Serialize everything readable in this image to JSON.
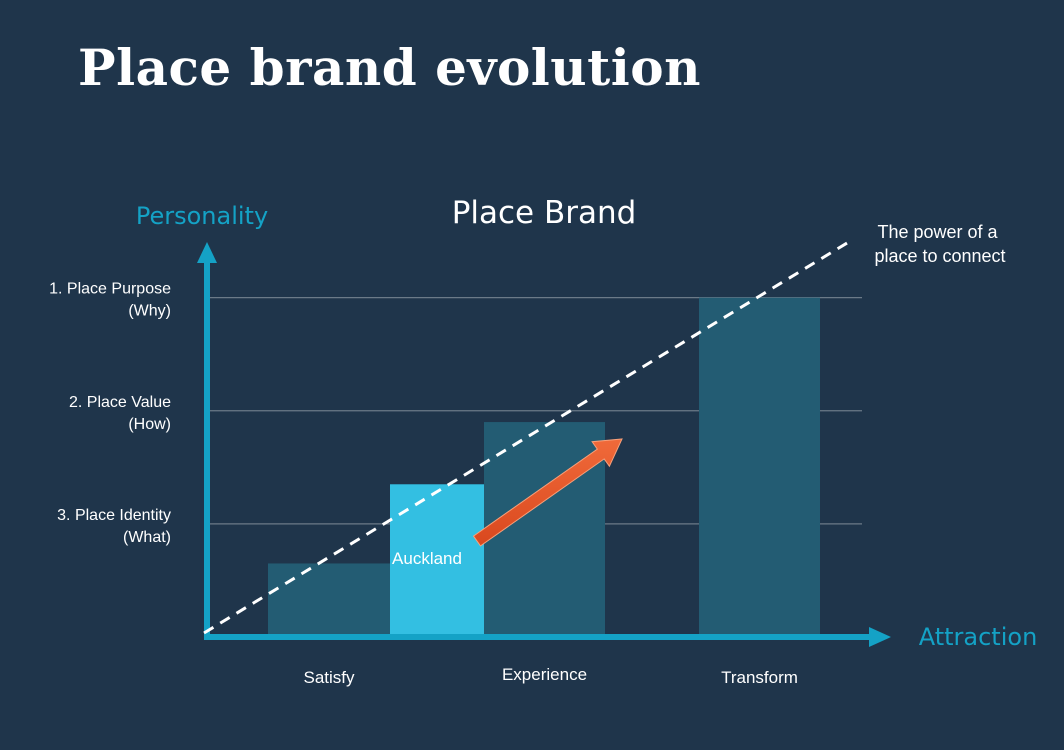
{
  "slide": {
    "title": "Place brand evolution"
  },
  "chart_data": {
    "type": "bar",
    "title": "Place Brand",
    "xlabel": "Attraction",
    "ylabel": "Personality",
    "y_levels": [
      {
        "line1": "3. Place Identity",
        "line2": "(What)",
        "value": 1
      },
      {
        "line1": "2. Place Value",
        "line2": "(How)",
        "value": 2
      },
      {
        "line1": "1. Place Purpose",
        "line2": "(Why)",
        "value": 3
      }
    ],
    "ylim": [
      0,
      3.5
    ],
    "categories": [
      "Satisfy",
      "Auckland",
      "Experience",
      "Transform"
    ],
    "category_labels": [
      "Satisfy",
      "",
      "Experience",
      "Transform"
    ],
    "values": [
      0.65,
      1.35,
      1.9,
      3.0
    ],
    "bar_labels": [
      "",
      "Auckland",
      "",
      ""
    ],
    "highlight_index": 1,
    "trend_line": {
      "label_line1": "The power of a",
      "label_line2": "place to connect",
      "style": "dashed"
    },
    "arrow": {
      "from_category": "Auckland",
      "to_category": "Experience",
      "color": "#e8552a"
    },
    "colors": {
      "bar": "#235c73",
      "highlight": "#33bfe2",
      "axis": "#14a2c6",
      "grid": "#6b7a88",
      "arrow": "#e8552a",
      "trend": "#ffffff"
    },
    "grid": true
  }
}
